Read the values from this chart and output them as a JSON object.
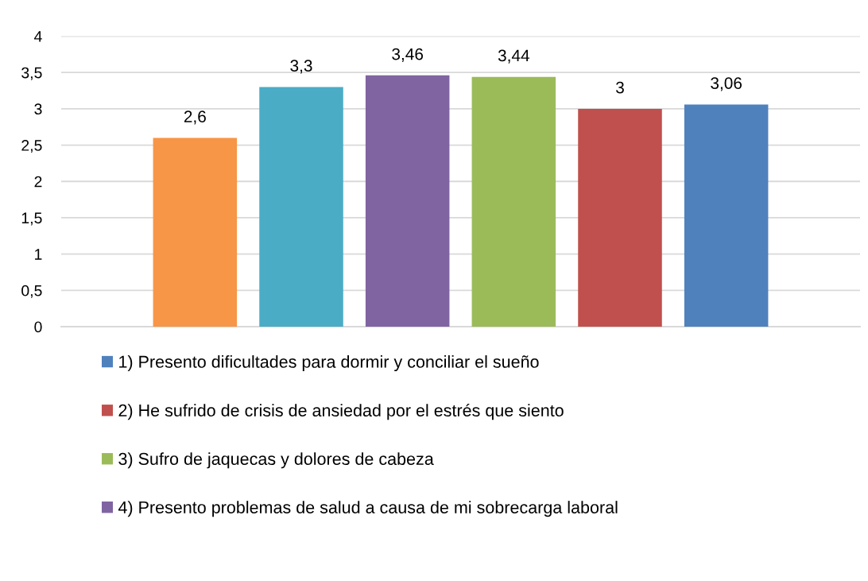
{
  "chart_data": {
    "type": "bar",
    "categories": [
      null
    ],
    "series": [
      {
        "color": "#f79646",
        "values": [
          2.6
        ],
        "value_labels": [
          "2,6"
        ]
      },
      {
        "color": "#4bacc6",
        "values": [
          3.3
        ],
        "value_labels": [
          "3,3"
        ]
      },
      {
        "name": "4) Presento problemas de salud a causa de mi sobrecarga laboral",
        "color": "#8064a2",
        "values": [
          3.46
        ],
        "value_labels": [
          "3,46"
        ]
      },
      {
        "name": "3) Sufro de jaquecas y dolores de cabeza",
        "color": "#9bbb59",
        "values": [
          3.44
        ],
        "value_labels": [
          "3,44"
        ]
      },
      {
        "name": "2) He sufrido de crisis de ansiedad por el estrés que siento",
        "color": "#c0504d",
        "values": [
          3
        ],
        "value_labels": [
          "3"
        ]
      },
      {
        "name": "1) Presento dificultades para dormir y conciliar el sueño",
        "color": "#4f81bd",
        "values": [
          3.06
        ],
        "value_labels": [
          "3,06"
        ]
      }
    ],
    "ylim": [
      0,
      4
    ],
    "yticks": [
      0,
      {
        "value": 0.5,
        "label": "0,5"
      },
      1,
      {
        "value": 1.5,
        "label": "1,5"
      },
      2,
      {
        "value": 2.5,
        "label": "2,5"
      },
      3,
      {
        "value": 3.5,
        "label": "3,5"
      },
      4
    ],
    "grid": "y",
    "legend": "bottom"
  }
}
